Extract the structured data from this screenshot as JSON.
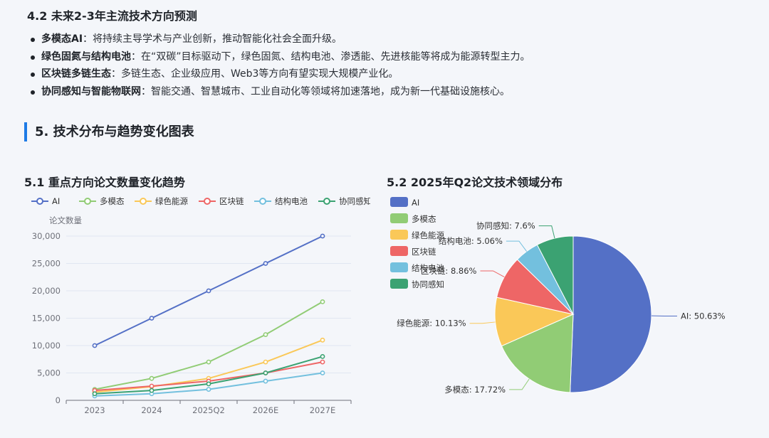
{
  "section42": {
    "title": "4.2 未来2-3年主流技术方向预测",
    "bullets": [
      {
        "bold": "多模态AI",
        "text": "：将持续主导学术与产业创新，推动智能化社会全面升级。"
      },
      {
        "bold": "绿色固氮与结构电池",
        "text": "：在“双碳”目标驱动下，绿色固氮、结构电池、渗透能、先进核能等将成为能源转型主力。"
      },
      {
        "bold": "区块链多链生态",
        "text": "：多链生态、企业级应用、Web3等方向有望实现大规模产业化。"
      },
      {
        "bold": "协同感知与智能物联网",
        "text": "：智能交通、智慧城市、工业自动化等领域将加速落地，成为新一代基础设施核心。"
      }
    ]
  },
  "section5": {
    "title": "5. 技术分布与趋势变化图表"
  },
  "colors": {
    "AI": "#5470c6",
    "多模态": "#91cc75",
    "绿色能源": "#fac858",
    "区块链": "#ee6666",
    "结构电池": "#73c0de",
    "协同感知": "#3ba272",
    "accent": "#1e7be6"
  },
  "chart_data": [
    {
      "type": "line",
      "title": "5.1 重点方向论文数量变化趋势",
      "ylabel": "论文数量",
      "categories": [
        "2023",
        "2024",
        "2025Q2",
        "2026E",
        "2027E"
      ],
      "ylim": [
        0,
        30000
      ],
      "yticks": [
        "0",
        "5,000",
        "10,000",
        "15,000",
        "20,000",
        "25,000",
        "30,000"
      ],
      "grid": true,
      "legend": "top",
      "series": [
        {
          "name": "AI",
          "values": [
            10000,
            15000,
            20000,
            25000,
            30000
          ]
        },
        {
          "name": "多模态",
          "values": [
            2000,
            4000,
            7000,
            12000,
            18000
          ]
        },
        {
          "name": "绿色能源",
          "values": [
            1500,
            2500,
            4000,
            7000,
            11000
          ]
        },
        {
          "name": "区块链",
          "values": [
            1800,
            2600,
            3500,
            5000,
            7000
          ]
        },
        {
          "name": "结构电池",
          "values": [
            800,
            1200,
            2000,
            3500,
            5000
          ]
        },
        {
          "name": "协同感知",
          "values": [
            1200,
            1800,
            3000,
            5000,
            8000
          ]
        }
      ]
    },
    {
      "type": "pie",
      "title": "5.2 2025年Q2论文技术领域分布",
      "legend": "top-left",
      "slices": [
        {
          "name": "AI",
          "value": 50.63,
          "label": "AI: 50.63%"
        },
        {
          "name": "多模态",
          "value": 17.72,
          "label": "多模态: 17.72%"
        },
        {
          "name": "绿色能源",
          "value": 10.13,
          "label": "绿色能源: 10.13%"
        },
        {
          "name": "区块链",
          "value": 8.86,
          "label": "区块链: 8.86%"
        },
        {
          "name": "结构电池",
          "value": 5.06,
          "label": "结构电池: 5.06%"
        },
        {
          "name": "协同感知",
          "value": 7.6,
          "label": "协同感知: 7.6%"
        }
      ]
    }
  ]
}
